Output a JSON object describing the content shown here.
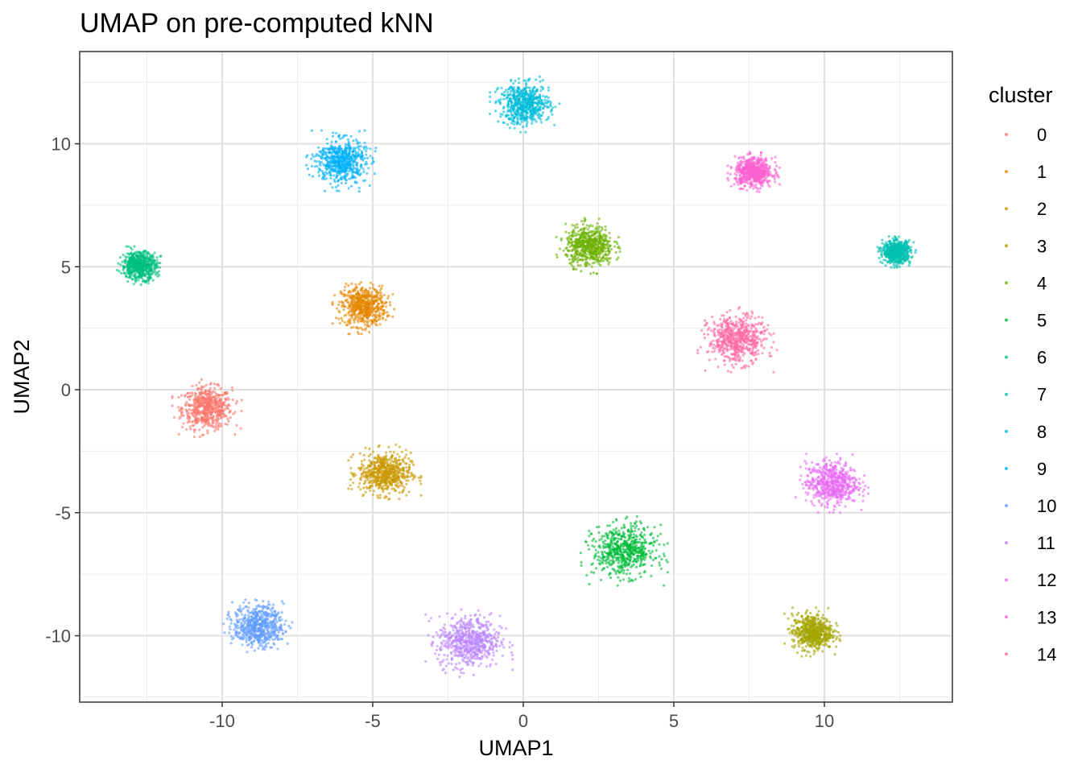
{
  "chart_data": {
    "type": "scatter",
    "title": "UMAP on pre-computed kNN",
    "xlabel": "UMAP1",
    "ylabel": "UMAP2",
    "xlim": [
      -14.73,
      14.25
    ],
    "ylim": [
      -12.7,
      13.75
    ],
    "xticks": [
      -10,
      -5,
      0,
      5,
      10
    ],
    "yticks": [
      -10,
      -5,
      0,
      5,
      10
    ],
    "xtick_labels": [
      "-10",
      "-5",
      "0",
      "5",
      "10"
    ],
    "ytick_labels": [
      "-10",
      "-5",
      "0",
      "5",
      "10"
    ],
    "grid": true,
    "legend": {
      "title": "cluster",
      "position": "right"
    },
    "points_per_cluster_drawn": 600,
    "clusters": [
      {
        "name": "0",
        "color": "#F8766D",
        "center": [
          -10.5,
          -0.75
        ],
        "spread": [
          1.07,
          1.08
        ]
      },
      {
        "name": "1",
        "color": "#E58700",
        "center": [
          -5.3,
          3.4
        ],
        "spread": [
          0.96,
          1.05
        ]
      },
      {
        "name": "2",
        "color": "#C99800",
        "center": [
          -4.6,
          -3.4
        ],
        "spread": [
          1.12,
          1.08
        ]
      },
      {
        "name": "3",
        "color": "#A3A500",
        "center": [
          9.6,
          -9.85
        ],
        "spread": [
          0.86,
          0.92
        ]
      },
      {
        "name": "4",
        "color": "#6BB100",
        "center": [
          2.2,
          5.85
        ],
        "spread": [
          1.02,
          1.05
        ]
      },
      {
        "name": "5",
        "color": "#00BA38",
        "center": [
          3.35,
          -6.55
        ],
        "spread": [
          1.34,
          1.31
        ]
      },
      {
        "name": "6",
        "color": "#00BF7D",
        "center": [
          -12.75,
          5.05
        ],
        "spread": [
          0.75,
          0.72
        ]
      },
      {
        "name": "7",
        "color": "#00C0AF",
        "center": [
          12.4,
          5.6
        ],
        "spread": [
          0.59,
          0.59
        ]
      },
      {
        "name": "8",
        "color": "#00BCD8",
        "center": [
          0.05,
          11.6
        ],
        "spread": [
          1.07,
          1.05
        ]
      },
      {
        "name": "9",
        "color": "#00B0F6",
        "center": [
          -6.05,
          9.3
        ],
        "spread": [
          1.07,
          1.15
        ]
      },
      {
        "name": "10",
        "color": "#619CFF",
        "center": [
          -8.8,
          -9.6
        ],
        "spread": [
          1.07,
          1.08
        ]
      },
      {
        "name": "11",
        "color": "#B983FF",
        "center": [
          -1.8,
          -10.25
        ],
        "spread": [
          1.34,
          1.37
        ]
      },
      {
        "name": "12",
        "color": "#E76BF3",
        "center": [
          10.25,
          -3.8
        ],
        "spread": [
          1.12,
          1.11
        ]
      },
      {
        "name": "13",
        "color": "#FD61D1",
        "center": [
          7.65,
          8.85
        ],
        "spread": [
          0.8,
          0.75
        ]
      },
      {
        "name": "14",
        "color": "#FF67A4",
        "center": [
          7.1,
          2.05
        ],
        "spread": [
          1.23,
          1.24
        ]
      }
    ]
  }
}
